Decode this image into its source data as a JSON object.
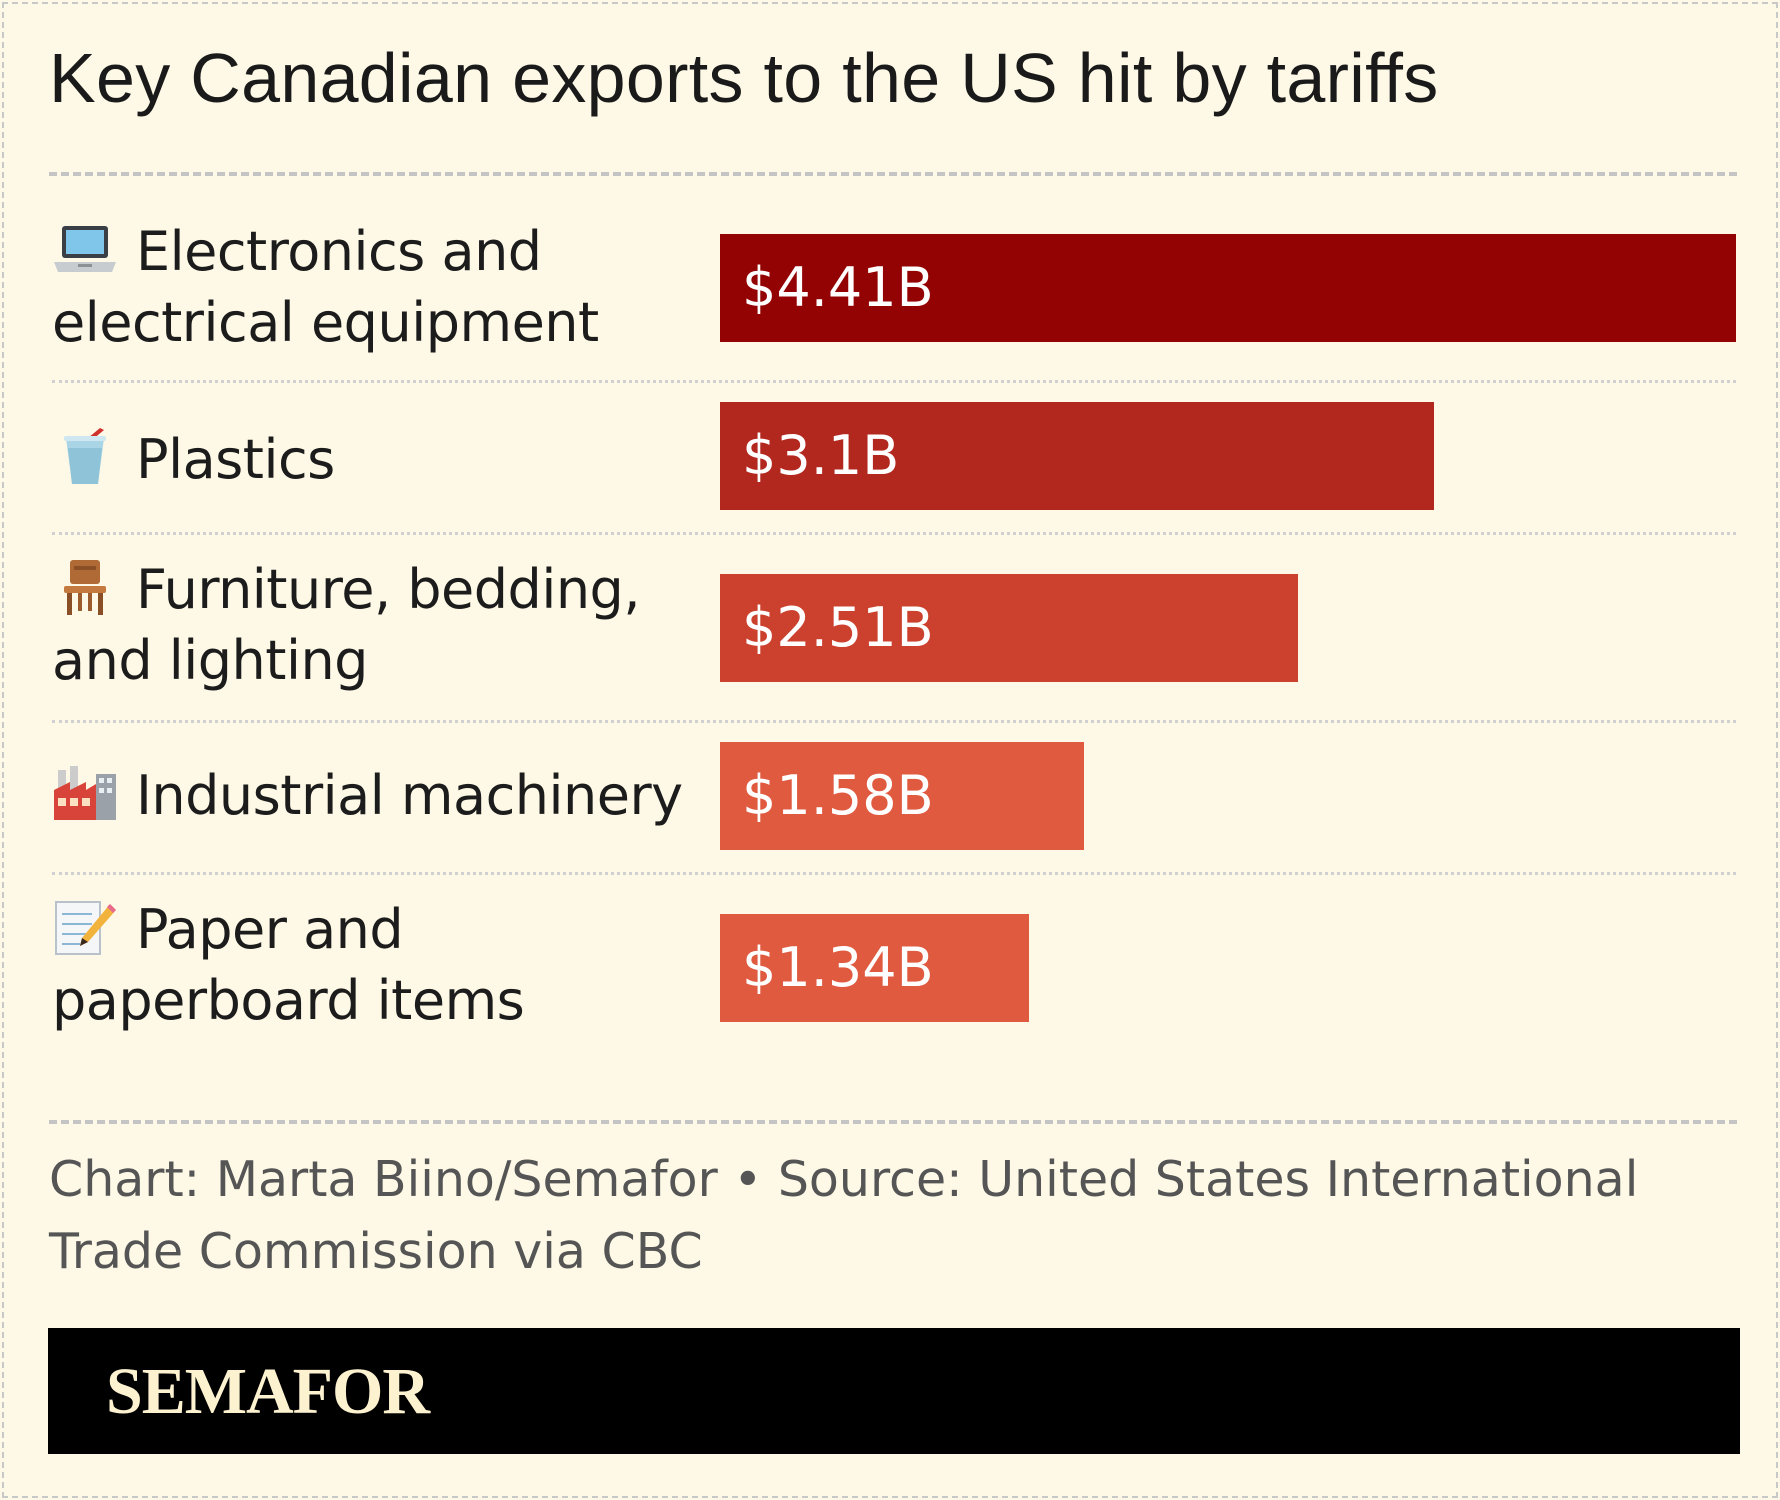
{
  "title": "Key Canadian exports to the US hit by tariffs",
  "chart_data": {
    "type": "bar",
    "orientation": "horizontal",
    "categories": [
      "Electronics and electrical equipment",
      "Plastics",
      "Furniture, bedding, and lighting",
      "Industrial machinery",
      "Paper and paperboard items"
    ],
    "icons": [
      "laptop-icon",
      "cup-with-straw-icon",
      "chair-icon",
      "factory-icon",
      "memo-icon"
    ],
    "values": [
      4.41,
      3.1,
      2.51,
      1.58,
      1.34
    ],
    "value_labels": [
      "$4.41B",
      "$3.1B",
      "$2.51B",
      "$1.58B",
      "$1.34B"
    ],
    "bar_colors": [
      "#940303",
      "#b3281e",
      "#cc412e",
      "#e05a40",
      "#e05a40"
    ],
    "title": "Key Canadian exports to the US hit by tariffs",
    "xlabel": "",
    "ylabel": "",
    "grid": false,
    "legend": "none"
  },
  "source": "Chart: Marta Biino/Semafor • Source: United States International Trade Commission via CBC",
  "brand": "SEMAFOR",
  "colors": {
    "background": "#fdf9e6",
    "footer": "#000000",
    "logo": "#fdf2cf"
  }
}
